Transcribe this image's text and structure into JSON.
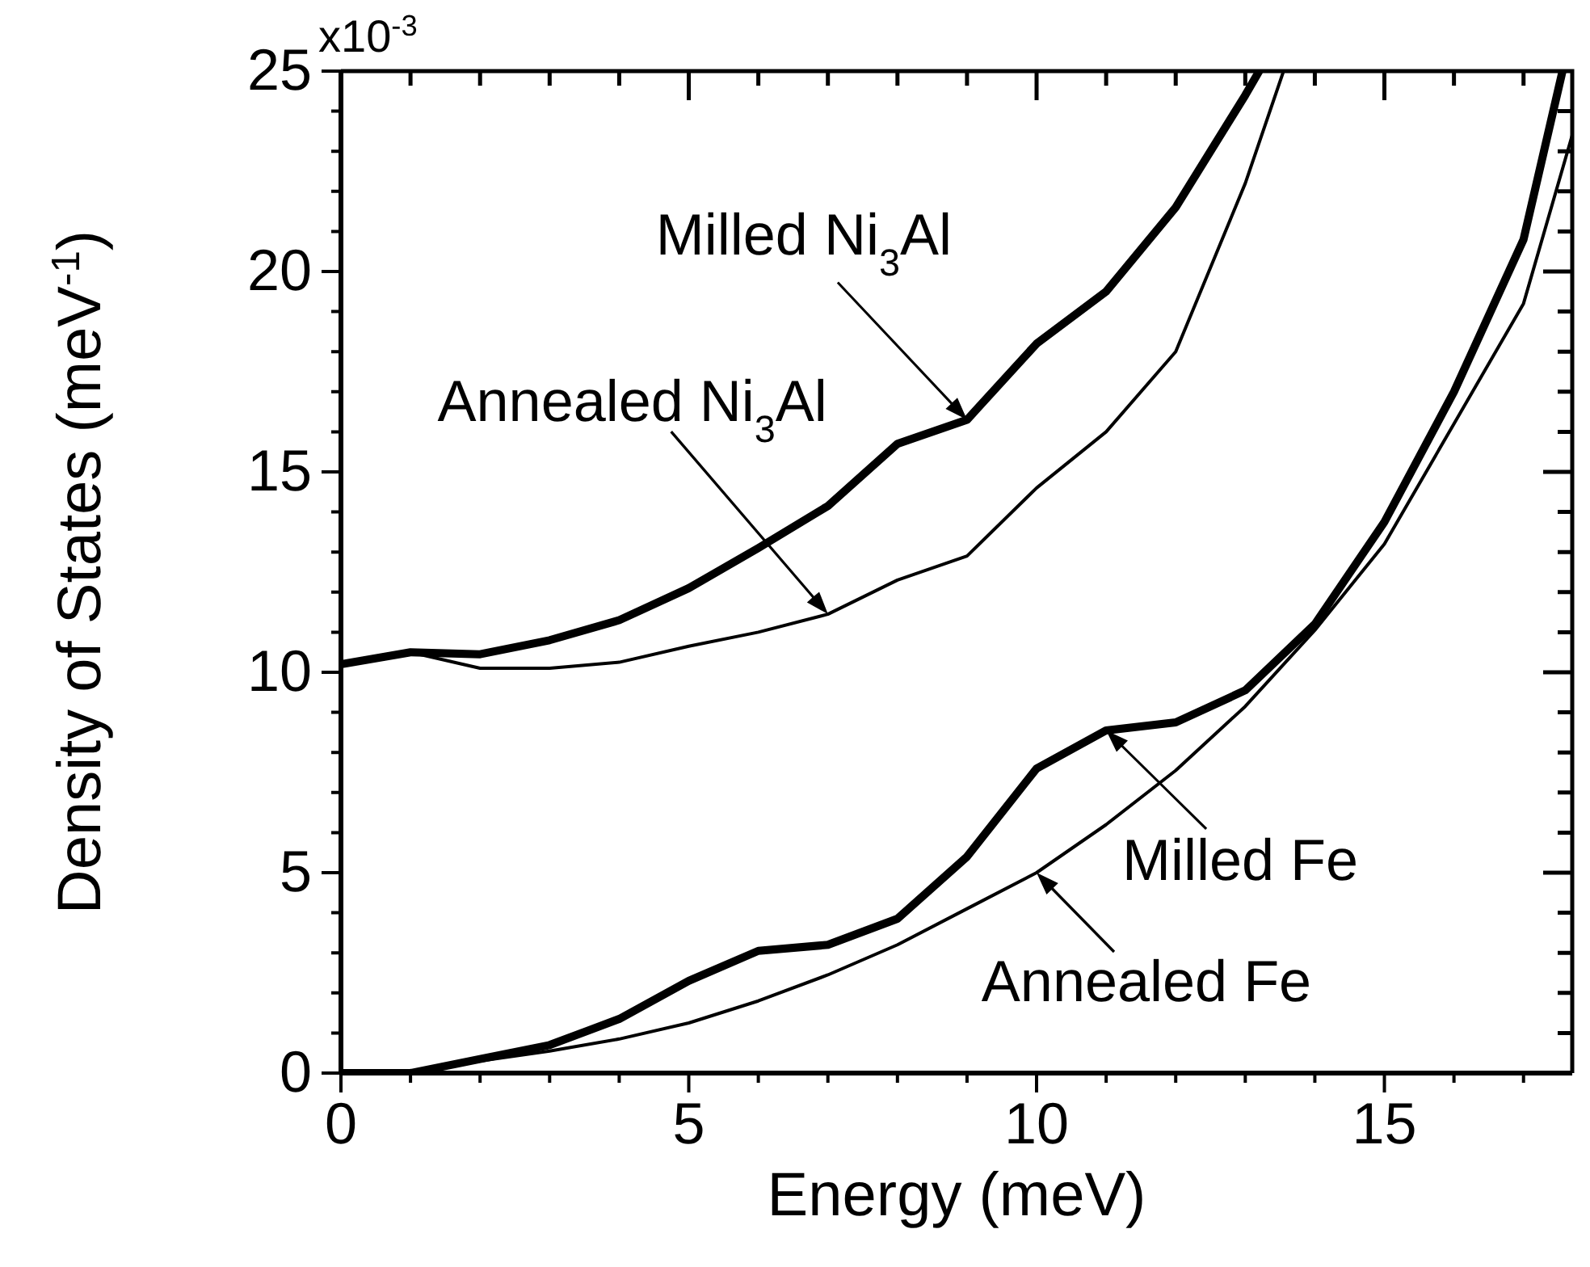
{
  "chart_data": {
    "type": "line",
    "xlabel": "Energy (meV)",
    "ylabel": "Density of States (meV$^{-1}$)",
    "xlim": [
      0,
      17.7
    ],
    "ylim": [
      0,
      25
    ],
    "xticks": [
      0,
      5,
      10,
      15
    ],
    "yticks": [
      0,
      5,
      10,
      15,
      20,
      25
    ],
    "grid": false,
    "marker": "none",
    "line_style": "solid",
    "series": [
      {
        "color": "#000000",
        "x": [
          0,
          1,
          2,
          3,
          4,
          5,
          6,
          7,
          8,
          9,
          10,
          11,
          12,
          13,
          13.2
        ],
        "values": [
          10.2,
          10.5,
          10.45,
          10.8,
          11.3,
          12.1,
          13.1,
          14.15,
          15.7,
          16.3,
          18.2,
          19.5,
          21.6,
          24.4,
          25
        ]
      },
      {
        "color": "#000000",
        "x": [
          0,
          1,
          2,
          3,
          4,
          5,
          6,
          7,
          8,
          9,
          10,
          11,
          12,
          13,
          13.55
        ],
        "values": [
          10.2,
          10.5,
          10.1,
          10.1,
          10.25,
          10.65,
          11.0,
          11.45,
          12.3,
          12.9,
          14.6,
          16.0,
          18.0,
          22.2,
          25
        ]
      },
      {
        "color": "#000000",
        "x": [
          0,
          1,
          2,
          3,
          4,
          5,
          6,
          7,
          8,
          9,
          10,
          11,
          12,
          13,
          14,
          15,
          16,
          17,
          17.56
        ],
        "values": [
          0,
          0,
          0.35,
          0.7,
          1.35,
          2.3,
          3.05,
          3.2,
          3.85,
          5.4,
          7.6,
          8.55,
          8.75,
          9.55,
          11.2,
          13.75,
          17.0,
          20.8,
          25
        ]
      },
      {
        "color": "#000000",
        "x": [
          0,
          1,
          2,
          3,
          4,
          5,
          6,
          7,
          8,
          9,
          10,
          11,
          12,
          13,
          14,
          15,
          16,
          17,
          17.7
        ],
        "values": [
          0,
          0,
          0.3,
          0.55,
          0.85,
          1.25,
          1.8,
          2.45,
          3.2,
          4.1,
          5.0,
          6.2,
          7.55,
          9.15,
          11.05,
          13.2,
          16.2,
          19.2,
          23.4
        ]
      }
    ],
    "annotations": [
      "x10$^{-3}$",
      {
        "text": "Milled Ni$_{3}$Al",
        "x": 9,
        "y": 16.3
      },
      {
        "text": "Annealed Ni$_{3}$Al",
        "x": 7,
        "y": 11.45
      },
      {
        "text": "Milled Fe",
        "x": 11,
        "y": 8.55
      },
      {
        "text": "Annealed Fe",
        "x": 10,
        "y": 5.0
      }
    ]
  }
}
